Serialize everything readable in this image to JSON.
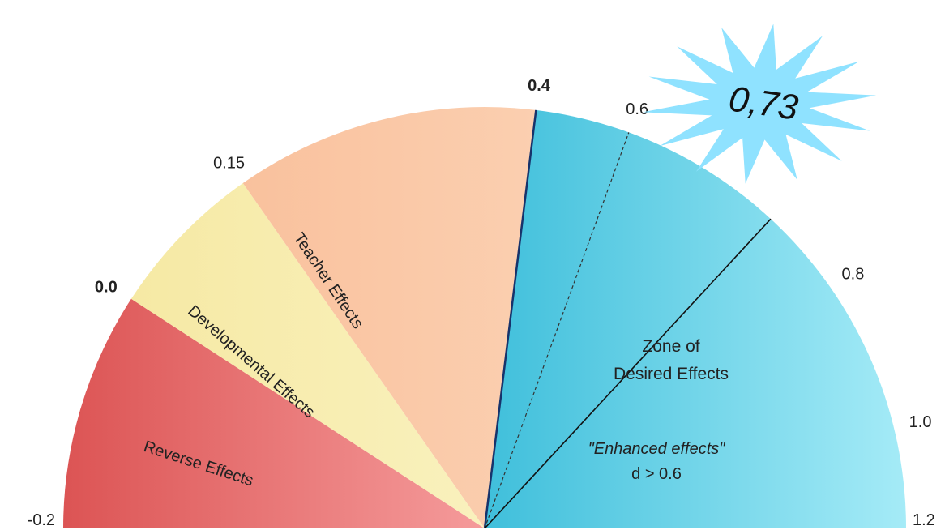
{
  "chart_data": {
    "type": "gauge",
    "range": [
      -0.2,
      1.2
    ],
    "ticks": [
      {
        "value": -0.2,
        "label": "-0.2",
        "bold": false
      },
      {
        "value": 0.0,
        "label": "0.0",
        "bold": true
      },
      {
        "value": 0.15,
        "label": "0.15",
        "bold": false
      },
      {
        "value": 0.4,
        "label": "0.4",
        "bold": true
      },
      {
        "value": 0.6,
        "label": "0.6",
        "bold": false
      },
      {
        "value": 0.8,
        "label": "0.8",
        "bold": false
      },
      {
        "value": 1.0,
        "label": "1.0",
        "bold": false
      },
      {
        "value": 1.2,
        "label": "1.2",
        "bold": false
      }
    ],
    "zones": [
      {
        "from": -0.2,
        "to": 0.0,
        "label": "Reverse Effects",
        "color_light": "#f59b9b",
        "color_dark": "#dc5454"
      },
      {
        "from": 0.0,
        "to": 0.15,
        "label": "Developmental  Effects",
        "color_light": "#f9f1bd",
        "color_dark": "#f6e9a4"
      },
      {
        "from": 0.15,
        "to": 0.4,
        "label": "Teacher  Effects",
        "color_light": "#fbcfb0",
        "color_dark": "#f9c19d"
      },
      {
        "from": 0.4,
        "to": 1.2,
        "label": "",
        "color_light": "#a5ebf7",
        "color_dark": "#3fbfdb"
      }
    ],
    "zone_desired": {
      "title_line1": "Zone of",
      "title_line2": "Desired Effects",
      "note": "\"Enhanced effects\"",
      "condition": "d > 0.6"
    },
    "dashed_marker": 0.6,
    "pointer": {
      "value": 0.73,
      "label": "0,73",
      "burst_color": "#8fe2ff"
    }
  }
}
